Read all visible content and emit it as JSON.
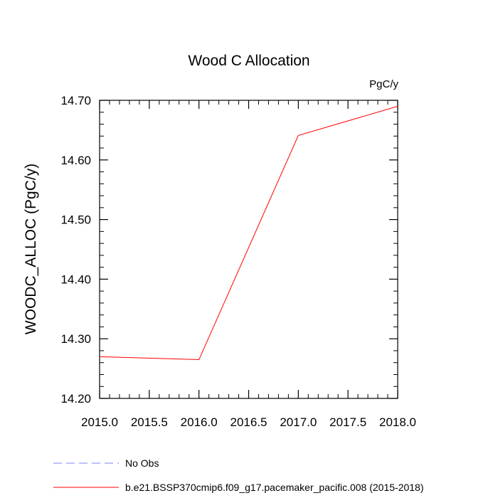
{
  "chart_data": {
    "type": "line",
    "title": "Wood C Allocation",
    "units_label": "PgC/y",
    "xlabel": "",
    "ylabel": "WOODC_ALLOC  (PgC/y)",
    "xlim": [
      2015.0,
      2018.0
    ],
    "ylim": [
      14.2,
      14.7
    ],
    "x_ticks": [
      2015.0,
      2015.5,
      2016.0,
      2016.5,
      2017.0,
      2017.5,
      2018.0
    ],
    "x_tick_labels": [
      "2015.0",
      "2015.5",
      "2016.0",
      "2016.5",
      "2017.0",
      "2017.5",
      "2018.0"
    ],
    "y_ticks": [
      14.2,
      14.3,
      14.4,
      14.5,
      14.6,
      14.7
    ],
    "y_tick_labels": [
      "14.20",
      "14.30",
      "14.40",
      "14.50",
      "14.60",
      "14.70"
    ],
    "grid": false,
    "legend_position": "bottom",
    "series": [
      {
        "name": "b.e21.BSSP370cmip6.f09_g17.pacemaker_pacific.008 (2015-2018)",
        "color": "#ff0000",
        "dash": "solid",
        "x": [
          2015.0,
          2016.0,
          2017.0,
          2018.0
        ],
        "y": [
          14.27,
          14.265,
          14.641,
          14.69
        ]
      }
    ],
    "legend": [
      {
        "label": "No Obs",
        "color": "#8080ff",
        "dash": "dashed"
      },
      {
        "label": "b.e21.BSSP370cmip6.f09_g17.pacemaker_pacific.008 (2015-2018)",
        "color": "#ff0000",
        "dash": "solid"
      }
    ]
  }
}
